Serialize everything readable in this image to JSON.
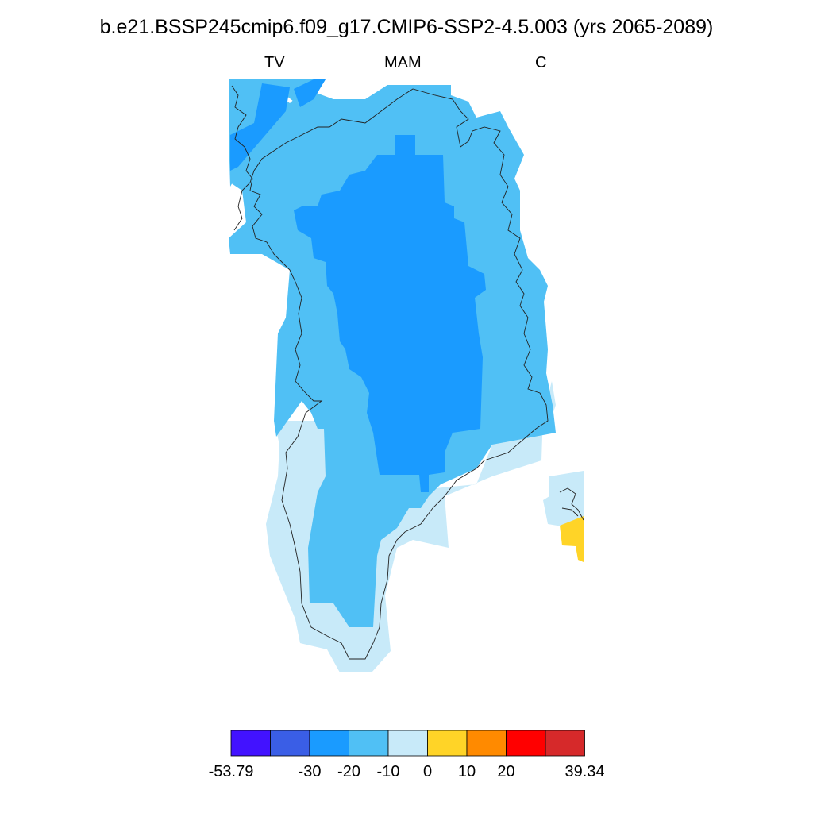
{
  "title": "b.e21.BSSP245cmip6.f09_g17.CMIP6-SSP2-4.5.003 (yrs 2065-2089)",
  "subtitle_left": "TV",
  "subtitle_center": "MAM",
  "subtitle_right": "C",
  "colorbar": {
    "colors": [
      "#4212ff",
      "#3a5ee6",
      "#1a9bff",
      "#50c0f5",
      "#c8eaf9",
      "#ffd427",
      "#ff8a00",
      "#ff0000",
      "#d6292a"
    ],
    "tick_labels": [
      "-53.79",
      "-30",
      "-20",
      "-10",
      "0",
      "10",
      "20",
      "39.34"
    ],
    "min": -53.79,
    "max": 39.34
  },
  "chart_data": {
    "type": "heatmap",
    "title": "b.e21.BSSP245cmip6.f09_g17.CMIP6-SSP2-4.5.003 (yrs 2065-2089)",
    "levels": [
      -53.79,
      -30,
      -20,
      -10,
      0,
      10,
      20,
      39.34
    ],
    "region_colors": {
      "-30 to -20": "#1a9bff",
      "-20 to -10": "#50c0f5",
      "-10 to 0": "#c8eaf9",
      "0 to 10": "#ffd427"
    }
  }
}
